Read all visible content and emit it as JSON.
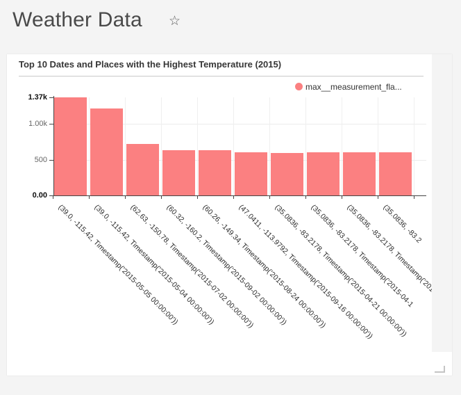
{
  "header": {
    "title": "Weather Data",
    "favorite_star_icon": "☆"
  },
  "card": {
    "title": "Top 10 Dates and Places with the Highest Temperature (2015)",
    "legend": {
      "label": "max__measurement_fla...",
      "marker_color": "#fb8081"
    }
  },
  "chart_data": {
    "type": "bar",
    "title": "Top 10 Dates and Places with the Highest Temperature (2015)",
    "legend": [
      "max__measurement_fla..."
    ],
    "legend_position": "top-right",
    "bar_color": "#fb8081",
    "grid": true,
    "xlabel": "",
    "ylabel": "",
    "ylim": [
      0,
      1370
    ],
    "y_ticks": [
      {
        "value": 0,
        "label": "0.00",
        "bold": true
      },
      {
        "value": 500,
        "label": "500",
        "bold": false
      },
      {
        "value": 1000,
        "label": "1.00k",
        "bold": false
      },
      {
        "value": 1370,
        "label": "1.37k",
        "bold": true
      }
    ],
    "categories": [
      "(39.0, -115.42, Timestamp('2015-05-05 00:00:00'))",
      "(39.0, -115.42, Timestamp('2015-05-04 00:00:00'))",
      "(62.63, -150.78, Timestamp('2015-07-02 00:00:00'))",
      "(60.32, -160.2, Timestamp('2015-09-02 00:00:00'))",
      "(60.26, -149.34, Timestamp('2015-08-24 00:00:00'))",
      "(47.0411, -113.9792, Timestamp('2015-09-16 00:00:00'))",
      "(35.0836, -83.2178, Timestamp('2015-04-21 00:00:00'))",
      "(35.0836, -83.2178, Timestamp('2015-04-1",
      "(35.0836, -83.2178, Timestamp('2015",
      "(35.0836, -83.2"
    ],
    "values": [
      1370,
      1215,
      715,
      635,
      630,
      605,
      595,
      600,
      600,
      600
    ]
  }
}
